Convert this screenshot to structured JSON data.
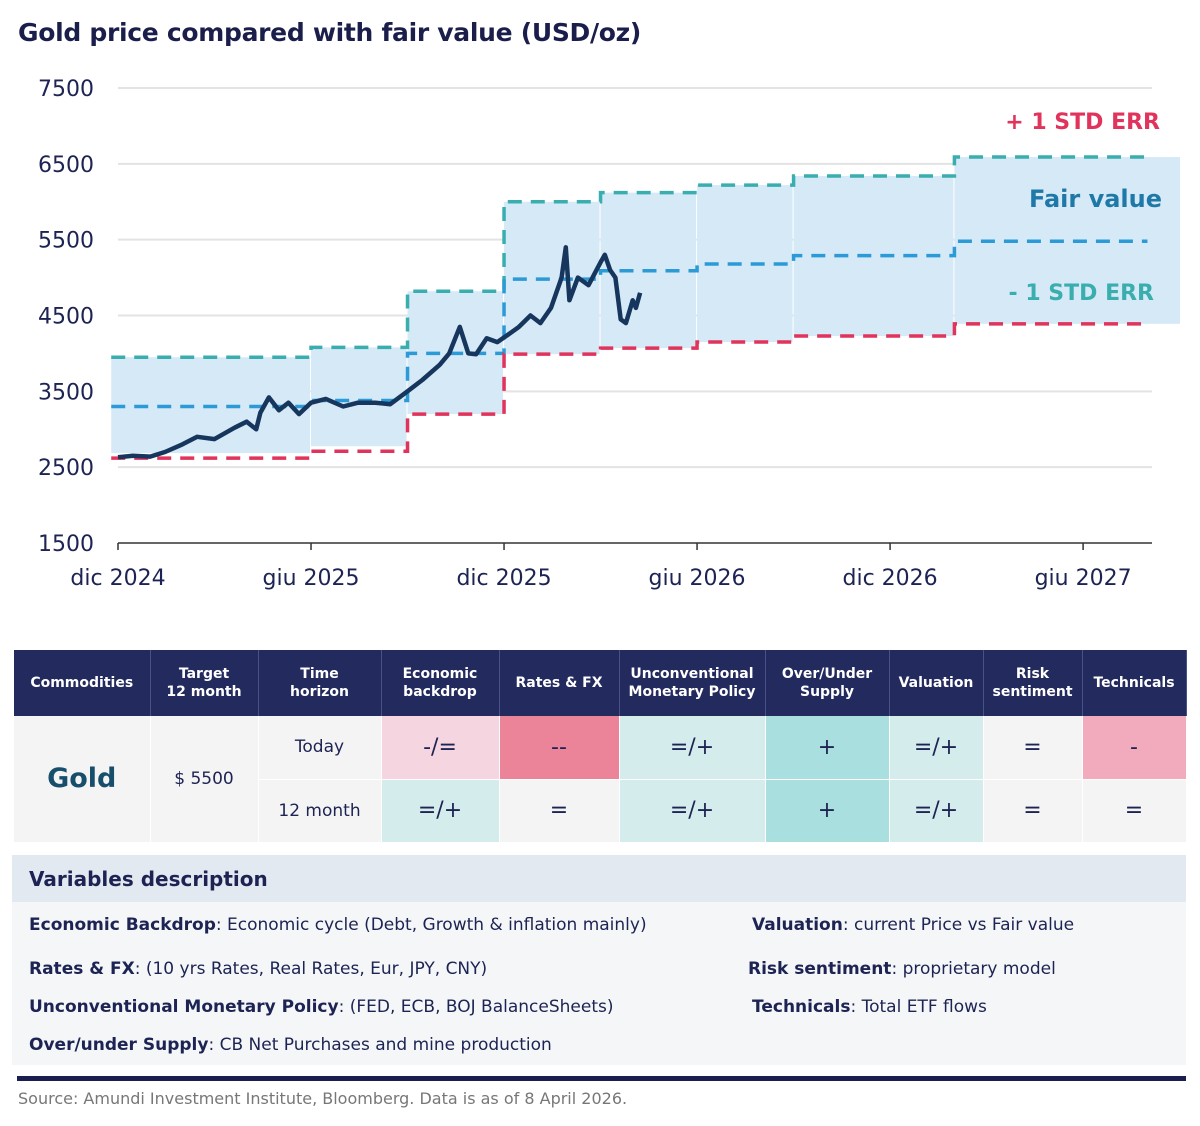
{
  "chart_data": {
    "type": "line",
    "title": "Gold price compared with fair value (USD/oz)",
    "ylim": [
      1500,
      7500
    ],
    "yticks": [
      "7500",
      "6500",
      "5500",
      "4500",
      "3500",
      "2500",
      "1500"
    ],
    "xticks": [
      "dic 2024",
      "giu 2025",
      "dic 2025",
      "giu 2026",
      "dic 2026",
      "giu 2027"
    ],
    "grid": true,
    "annotations": {
      "upper": "+ 1 STD ERR",
      "mid": "Fair value",
      "lower": "- 1 STD ERR"
    },
    "colors": {
      "price": "#17365d",
      "upper": "#3aaeae",
      "mid": "#2b9ad6",
      "lower": "#e0345c",
      "band": "#d6e9f7"
    },
    "fair_value_steps": [
      {
        "from": "2024-11-25",
        "to": "2025-06-01",
        "upper": 3950,
        "fair": 3300,
        "lower": 2620
      },
      {
        "from": "2025-06-01",
        "to": "2025-09-01",
        "upper": 4080,
        "fair": 3380,
        "lower": 2710
      },
      {
        "from": "2025-09-01",
        "to": "2025-12-01",
        "upper": 4820,
        "fair": 4000,
        "lower": 3200
      },
      {
        "from": "2025-12-01",
        "to": "2026-03-01",
        "upper": 6000,
        "fair": 4980,
        "lower": 3990
      },
      {
        "from": "2026-03-01",
        "to": "2026-06-01",
        "upper": 6120,
        "fair": 5090,
        "lower": 4070
      },
      {
        "from": "2026-06-01",
        "to": "2026-09-01",
        "upper": 6220,
        "fair": 5180,
        "lower": 4150
      },
      {
        "from": "2026-09-01",
        "to": "2027-02-01",
        "upper": 6340,
        "fair": 5290,
        "lower": 4230
      },
      {
        "from": "2027-02-01",
        "to": "2027-08-01",
        "upper": 6590,
        "fair": 5480,
        "lower": 4390
      }
    ],
    "price": [
      [
        "2024-12-01",
        2630
      ],
      [
        "2024-12-15",
        2650
      ],
      [
        "2025-01-01",
        2640
      ],
      [
        "2025-01-15",
        2700
      ],
      [
        "2025-02-01",
        2800
      ],
      [
        "2025-02-15",
        2900
      ],
      [
        "2025-03-01",
        2870
      ],
      [
        "2025-03-20",
        3020
      ],
      [
        "2025-04-01",
        3100
      ],
      [
        "2025-04-10",
        3000
      ],
      [
        "2025-04-14",
        3220
      ],
      [
        "2025-04-22",
        3420
      ],
      [
        "2025-05-01",
        3250
      ],
      [
        "2025-05-10",
        3350
      ],
      [
        "2025-05-20",
        3200
      ],
      [
        "2025-06-01",
        3350
      ],
      [
        "2025-06-15",
        3400
      ],
      [
        "2025-07-01",
        3300
      ],
      [
        "2025-07-15",
        3350
      ],
      [
        "2025-08-01",
        3350
      ],
      [
        "2025-08-15",
        3330
      ],
      [
        "2025-09-01",
        3500
      ],
      [
        "2025-09-15",
        3650
      ],
      [
        "2025-10-01",
        3850
      ],
      [
        "2025-10-10",
        4000
      ],
      [
        "2025-10-20",
        4350
      ],
      [
        "2025-10-28",
        4000
      ],
      [
        "2025-11-05",
        3990
      ],
      [
        "2025-11-15",
        4200
      ],
      [
        "2025-11-25",
        4150
      ],
      [
        "2025-12-05",
        4250
      ],
      [
        "2025-12-15",
        4350
      ],
      [
        "2025-12-26",
        4500
      ],
      [
        "2026-01-05",
        4400
      ],
      [
        "2026-01-15",
        4600
      ],
      [
        "2026-01-25",
        5000
      ],
      [
        "2026-01-29",
        5400
      ],
      [
        "2026-02-02",
        4700
      ],
      [
        "2026-02-10",
        5000
      ],
      [
        "2026-02-20",
        4900
      ],
      [
        "2026-03-01",
        5200
      ],
      [
        "2026-03-05",
        5300
      ],
      [
        "2026-03-10",
        5100
      ],
      [
        "2026-03-15",
        5000
      ],
      [
        "2026-03-20",
        4450
      ],
      [
        "2026-03-25",
        4400
      ],
      [
        "2026-04-01",
        4700
      ],
      [
        "2026-04-04",
        4600
      ],
      [
        "2026-04-08",
        4800
      ]
    ]
  },
  "table": {
    "headers": [
      "Commodities",
      "Target\n12 month",
      "Time\nhorizon",
      "Economic\nbackdrop",
      "Rates & FX",
      "Unconventional\nMonetary Policy",
      "Over/Under\nSupply",
      "Valuation",
      "Risk\nsentiment",
      "Technicals"
    ],
    "commodity": "Gold",
    "target": "$ 5500",
    "rows": [
      {
        "horizon": "Today",
        "cells": [
          {
            "v": "-/=",
            "c": "#f5d5e0"
          },
          {
            "v": "--",
            "c": "#ec8499"
          },
          {
            "v": "=/+",
            "c": "#d5ecec"
          },
          {
            "v": "+",
            "c": "#a9dfdf"
          },
          {
            "v": "=/+",
            "c": "#d5ecec"
          },
          {
            "v": "=",
            "c": "#f4f4f4"
          },
          {
            "v": "-",
            "c": "#f2abbd"
          }
        ]
      },
      {
        "horizon": "12 month",
        "cells": [
          {
            "v": "=/+",
            "c": "#d5ecec"
          },
          {
            "v": "=",
            "c": "#f4f4f4"
          },
          {
            "v": "=/+",
            "c": "#d5ecec"
          },
          {
            "v": "+",
            "c": "#a9dfdf"
          },
          {
            "v": "=/+",
            "c": "#d5ecec"
          },
          {
            "v": "=",
            "c": "#f4f4f4"
          },
          {
            "v": "=",
            "c": "#f4f4f4"
          }
        ]
      }
    ]
  },
  "description": {
    "title": "Variables description",
    "items": [
      {
        "k": "Economic Backdrop",
        "v": ": Economic cycle (Debt, Growth & inflation mainly)"
      },
      {
        "k": "Rates & FX",
        "v": ": (10 yrs Rates, Real Rates, Eur, JPY, CNY)"
      },
      {
        "k": "Unconventional Monetary Policy",
        "v": ": (FED, ECB, BOJ BalanceSheets)"
      },
      {
        "k": "Over/under Supply",
        "v": ": CB Net Purchases and mine production"
      },
      {
        "k": "Valuation",
        "v": ": current Price vs Fair value"
      },
      {
        "k": "Risk sentiment",
        "v": ": proprietary model"
      },
      {
        "k": "Technicals",
        "v": ": Total ETF flows"
      }
    ]
  },
  "source": "Source: Amundi Investment Institute, Bloomberg. Data is as of 8 April 2026."
}
